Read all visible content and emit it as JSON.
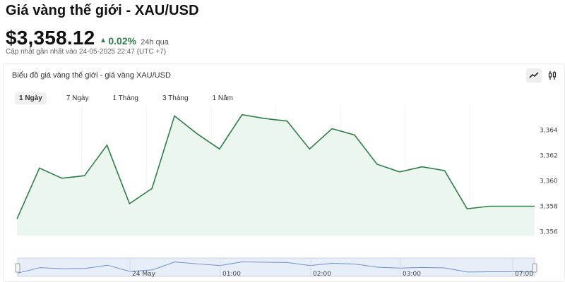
{
  "header": {
    "title": "Giá vàng thế giới - XAU/USD",
    "price": "$3,358.12",
    "change": "0.02%",
    "period": "24h qua",
    "updated": "Cập nhật gần nhất vào 24-05-2025 22:47 (UTC +7)"
  },
  "card": {
    "title": "Biểu đồ giá vàng thế giới - giá vàng XAU/USD",
    "modes": [
      "line-chart-icon",
      "candlestick-icon"
    ],
    "ranges": [
      {
        "label": "1 Ngày",
        "active": true
      },
      {
        "label": "7 Ngày",
        "active": false
      },
      {
        "label": "1 Tháng",
        "active": false
      },
      {
        "label": "3 Tháng",
        "active": false
      },
      {
        "label": "1 Năm",
        "active": false
      }
    ]
  },
  "colors": {
    "line": "#2e7d4a",
    "area": "#eaf6ee",
    "accent_up": "#2e7d4a"
  },
  "chart_data": {
    "type": "area",
    "y_ticks": [
      "3,364",
      "3,362",
      "3,360",
      "3,358",
      "3,356"
    ],
    "ylim": [
      3355.7,
      3365.9
    ],
    "grid": true,
    "values": [
      3357.0,
      3361.0,
      3360.2,
      3360.4,
      3362.8,
      3358.2,
      3359.4,
      3365.1,
      3363.7,
      3362.5,
      3365.2,
      3364.9,
      3364.7,
      3362.5,
      3364.1,
      3363.6,
      3361.3,
      3360.7,
      3361.1,
      3360.8,
      3357.8,
      3358.0,
      3358.0,
      3358.0
    ],
    "navigator": {
      "labels": [
        "24 May",
        "01:00",
        "02:00",
        "03:00",
        "07:00"
      ]
    }
  }
}
